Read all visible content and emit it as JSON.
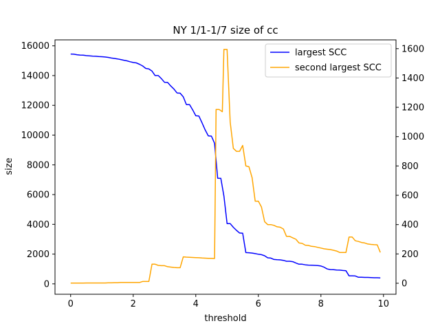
{
  "chart_data": {
    "type": "line",
    "title": "NY 1/1-1/7 size of cc",
    "xlabel": "threshold",
    "ylabel": "size",
    "xlim": [
      -0.5,
      10.4
    ],
    "ylim_left": [
      -700,
      16400
    ],
    "ylim_right": [
      -75,
      1660
    ],
    "x_ticks": [
      0,
      2,
      4,
      6,
      8,
      10
    ],
    "x_tick_labels": [
      "0",
      "2",
      "4",
      "6",
      "8",
      "10"
    ],
    "y_ticks_left": [
      0,
      2000,
      4000,
      6000,
      8000,
      10000,
      12000,
      14000,
      16000
    ],
    "y_tick_labels_left": [
      "0",
      "2000",
      "4000",
      "6000",
      "8000",
      "10000",
      "12000",
      "14000",
      "16000"
    ],
    "y_ticks_right": [
      0,
      200,
      400,
      600,
      800,
      1000,
      1200,
      1400,
      1600
    ],
    "y_tick_labels_right": [
      "0",
      "200",
      "400",
      "600",
      "800",
      "1000",
      "1200",
      "1400",
      "1600"
    ],
    "grid": false,
    "legend_position": "top-right",
    "series": [
      {
        "name": "largest SCC",
        "color": "#0000ff",
        "axis": "left",
        "points": [
          [
            0.0,
            15450
          ],
          [
            0.1,
            15440
          ],
          [
            0.2,
            15400
          ],
          [
            0.3,
            15380
          ],
          [
            0.4,
            15370
          ],
          [
            0.5,
            15340
          ],
          [
            0.6,
            15330
          ],
          [
            0.7,
            15310
          ],
          [
            0.8,
            15300
          ],
          [
            0.9,
            15280
          ],
          [
            1.0,
            15270
          ],
          [
            1.1,
            15250
          ],
          [
            1.2,
            15220
          ],
          [
            1.3,
            15180
          ],
          [
            1.4,
            15150
          ],
          [
            1.5,
            15120
          ],
          [
            1.6,
            15080
          ],
          [
            1.7,
            15030
          ],
          [
            1.8,
            14990
          ],
          [
            1.9,
            14930
          ],
          [
            2.0,
            14880
          ],
          [
            2.1,
            14850
          ],
          [
            2.2,
            14760
          ],
          [
            2.3,
            14650
          ],
          [
            2.4,
            14480
          ],
          [
            2.5,
            14450
          ],
          [
            2.6,
            14300
          ],
          [
            2.7,
            14000
          ],
          [
            2.8,
            14000
          ],
          [
            2.9,
            13800
          ],
          [
            3.0,
            13550
          ],
          [
            3.1,
            13540
          ],
          [
            3.2,
            13300
          ],
          [
            3.3,
            13100
          ],
          [
            3.4,
            12830
          ],
          [
            3.5,
            12820
          ],
          [
            3.6,
            12570
          ],
          [
            3.7,
            12050
          ],
          [
            3.8,
            12050
          ],
          [
            3.9,
            11700
          ],
          [
            4.0,
            11300
          ],
          [
            4.1,
            11280
          ],
          [
            4.2,
            10820
          ],
          [
            4.3,
            10350
          ],
          [
            4.4,
            9950
          ],
          [
            4.5,
            9930
          ],
          [
            4.6,
            9450
          ],
          [
            4.7,
            7100
          ],
          [
            4.8,
            7090
          ],
          [
            4.9,
            5900
          ],
          [
            5.0,
            4050
          ],
          [
            5.1,
            4050
          ],
          [
            5.2,
            3800
          ],
          [
            5.3,
            3600
          ],
          [
            5.4,
            3420
          ],
          [
            5.5,
            3400
          ],
          [
            5.6,
            2100
          ],
          [
            5.7,
            2090
          ],
          [
            5.8,
            2070
          ],
          [
            5.9,
            2030
          ],
          [
            6.0,
            1990
          ],
          [
            6.1,
            1960
          ],
          [
            6.2,
            1890
          ],
          [
            6.3,
            1750
          ],
          [
            6.4,
            1730
          ],
          [
            6.5,
            1640
          ],
          [
            6.6,
            1620
          ],
          [
            6.7,
            1610
          ],
          [
            6.8,
            1580
          ],
          [
            6.9,
            1520
          ],
          [
            7.0,
            1520
          ],
          [
            7.1,
            1490
          ],
          [
            7.2,
            1400
          ],
          [
            7.3,
            1320
          ],
          [
            7.4,
            1320
          ],
          [
            7.5,
            1280
          ],
          [
            7.6,
            1260
          ],
          [
            7.7,
            1250
          ],
          [
            7.8,
            1240
          ],
          [
            7.9,
            1230
          ],
          [
            8.0,
            1200
          ],
          [
            8.1,
            1120
          ],
          [
            8.2,
            1000
          ],
          [
            8.3,
            960
          ],
          [
            8.4,
            950
          ],
          [
            8.5,
            930
          ],
          [
            8.6,
            920
          ],
          [
            8.7,
            900
          ],
          [
            8.8,
            880
          ],
          [
            8.9,
            540
          ],
          [
            9.0,
            540
          ],
          [
            9.1,
            530
          ],
          [
            9.2,
            440
          ],
          [
            9.3,
            440
          ],
          [
            9.4,
            430
          ],
          [
            9.5,
            430
          ],
          [
            9.6,
            420
          ],
          [
            9.7,
            410
          ],
          [
            9.8,
            410
          ],
          [
            9.9,
            400
          ]
        ]
      },
      {
        "name": "second largest SCC",
        "color": "#ffa500",
        "axis": "right",
        "points": [
          [
            0.0,
            1
          ],
          [
            0.1,
            1
          ],
          [
            0.2,
            1
          ],
          [
            0.3,
            1
          ],
          [
            0.4,
            1
          ],
          [
            0.5,
            2
          ],
          [
            0.6,
            2
          ],
          [
            0.7,
            2
          ],
          [
            0.8,
            2
          ],
          [
            0.9,
            2
          ],
          [
            1.0,
            2
          ],
          [
            1.1,
            2
          ],
          [
            1.2,
            3
          ],
          [
            1.3,
            3
          ],
          [
            1.4,
            4
          ],
          [
            1.5,
            4
          ],
          [
            1.6,
            5
          ],
          [
            1.7,
            5
          ],
          [
            1.8,
            5
          ],
          [
            1.9,
            5
          ],
          [
            2.0,
            5
          ],
          [
            2.1,
            5
          ],
          [
            2.2,
            5
          ],
          [
            2.3,
            12
          ],
          [
            2.4,
            12
          ],
          [
            2.5,
            12
          ],
          [
            2.6,
            130
          ],
          [
            2.7,
            130
          ],
          [
            2.8,
            122
          ],
          [
            2.9,
            120
          ],
          [
            3.0,
            120
          ],
          [
            3.1,
            113
          ],
          [
            3.2,
            110
          ],
          [
            3.3,
            108
          ],
          [
            3.4,
            106
          ],
          [
            3.5,
            106
          ],
          [
            3.6,
            180
          ],
          [
            3.7,
            178
          ],
          [
            3.8,
            177
          ],
          [
            3.9,
            176
          ],
          [
            4.0,
            175
          ],
          [
            4.1,
            174
          ],
          [
            4.2,
            172
          ],
          [
            4.3,
            171
          ],
          [
            4.4,
            170
          ],
          [
            4.5,
            170
          ],
          [
            4.6,
            169
          ],
          [
            4.65,
            1185
          ],
          [
            4.75,
            1185
          ],
          [
            4.85,
            1170
          ],
          [
            4.9,
            1595
          ],
          [
            5.0,
            1595
          ],
          [
            5.1,
            1100
          ],
          [
            5.2,
            920
          ],
          [
            5.3,
            900
          ],
          [
            5.4,
            900
          ],
          [
            5.5,
            940
          ],
          [
            5.6,
            800
          ],
          [
            5.7,
            795
          ],
          [
            5.8,
            720
          ],
          [
            5.9,
            560
          ],
          [
            6.0,
            560
          ],
          [
            6.1,
            520
          ],
          [
            6.2,
            420
          ],
          [
            6.3,
            400
          ],
          [
            6.4,
            400
          ],
          [
            6.5,
            395
          ],
          [
            6.6,
            385
          ],
          [
            6.7,
            382
          ],
          [
            6.8,
            370
          ],
          [
            6.9,
            320
          ],
          [
            7.0,
            320
          ],
          [
            7.1,
            310
          ],
          [
            7.2,
            300
          ],
          [
            7.3,
            275
          ],
          [
            7.4,
            272
          ],
          [
            7.5,
            260
          ],
          [
            7.6,
            258
          ],
          [
            7.7,
            252
          ],
          [
            7.8,
            250
          ],
          [
            7.9,
            245
          ],
          [
            8.0,
            240
          ],
          [
            8.1,
            235
          ],
          [
            8.2,
            232
          ],
          [
            8.3,
            230
          ],
          [
            8.4,
            225
          ],
          [
            8.5,
            220
          ],
          [
            8.6,
            210
          ],
          [
            8.7,
            210
          ],
          [
            8.8,
            210
          ],
          [
            8.9,
            315
          ],
          [
            9.0,
            315
          ],
          [
            9.1,
            290
          ],
          [
            9.2,
            285
          ],
          [
            9.3,
            278
          ],
          [
            9.4,
            275
          ],
          [
            9.5,
            268
          ],
          [
            9.6,
            265
          ],
          [
            9.7,
            263
          ],
          [
            9.8,
            262
          ],
          [
            9.9,
            210
          ]
        ]
      }
    ]
  }
}
